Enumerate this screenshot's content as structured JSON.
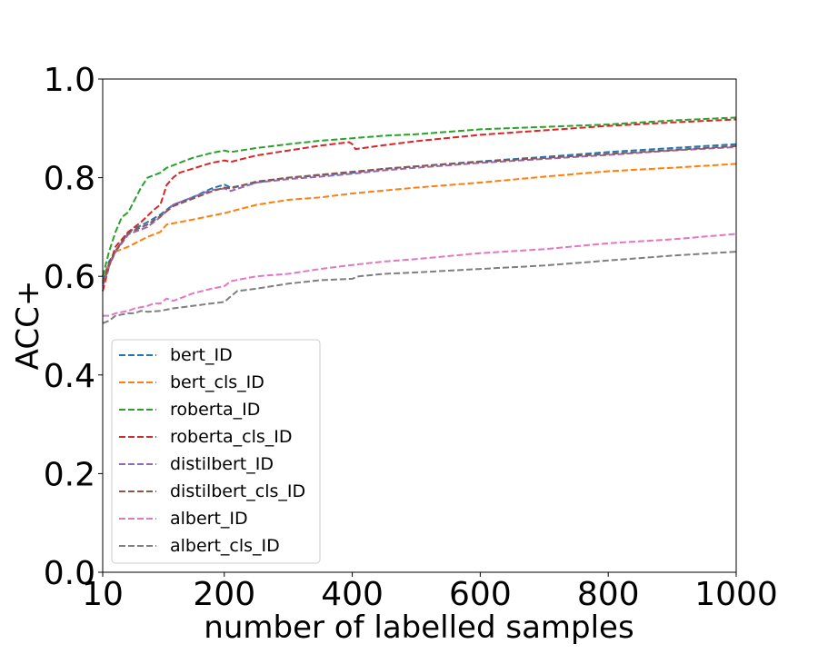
{
  "chart_data": {
    "type": "line",
    "title": "",
    "xlabel": "number of labelled samples",
    "ylabel": "ACC+",
    "xlim": [
      10,
      1000
    ],
    "ylim": [
      0.0,
      1.0
    ],
    "x_ticks": [
      10,
      200,
      400,
      600,
      800,
      1000
    ],
    "x_tick_labels": [
      "10",
      "200",
      "400",
      "600",
      "800",
      "1000"
    ],
    "y_ticks": [
      0.0,
      0.2,
      0.4,
      0.6,
      0.8,
      1.0
    ],
    "y_tick_labels": [
      "0.0",
      "0.2",
      "0.4",
      "0.6",
      "0.8",
      "1.0"
    ],
    "grid": false,
    "line_style": "dashed",
    "legend_position": "lower-left",
    "series": [
      {
        "name": "bert_ID",
        "color": "#1f77b4",
        "x": [
          10,
          20,
          30,
          50,
          80,
          100,
          120,
          150,
          180,
          200,
          210,
          250,
          300,
          350,
          400,
          450,
          500,
          600,
          700,
          800,
          900,
          1000
        ],
        "y": [
          0.59,
          0.63,
          0.65,
          0.69,
          0.71,
          0.725,
          0.745,
          0.76,
          0.778,
          0.786,
          0.78,
          0.79,
          0.8,
          0.805,
          0.81,
          0.818,
          0.823,
          0.833,
          0.842,
          0.852,
          0.86,
          0.868
        ]
      },
      {
        "name": "bert_cls_ID",
        "color": "#ff7f0e",
        "x": [
          10,
          20,
          30,
          50,
          80,
          100,
          110,
          150,
          200,
          250,
          300,
          350,
          400,
          500,
          600,
          700,
          800,
          900,
          1000
        ],
        "y": [
          0.6,
          0.625,
          0.65,
          0.66,
          0.68,
          0.69,
          0.705,
          0.715,
          0.728,
          0.745,
          0.755,
          0.76,
          0.768,
          0.78,
          0.79,
          0.802,
          0.813,
          0.82,
          0.828
        ]
      },
      {
        "name": "roberta_ID",
        "color": "#2ca02c",
        "x": [
          10,
          20,
          30,
          40,
          50,
          60,
          70,
          80,
          100,
          110,
          130,
          150,
          180,
          200,
          210,
          250,
          300,
          350,
          400,
          450,
          500,
          600,
          700,
          800,
          900,
          1000
        ],
        "y": [
          0.6,
          0.65,
          0.69,
          0.72,
          0.73,
          0.755,
          0.78,
          0.8,
          0.81,
          0.82,
          0.83,
          0.84,
          0.85,
          0.855,
          0.852,
          0.86,
          0.868,
          0.875,
          0.88,
          0.885,
          0.888,
          0.898,
          0.903,
          0.908,
          0.916,
          0.922
        ]
      },
      {
        "name": "roberta_cls_ID",
        "color": "#d62728",
        "x": [
          10,
          20,
          30,
          50,
          70,
          90,
          100,
          110,
          120,
          130,
          150,
          180,
          200,
          210,
          250,
          300,
          350,
          395,
          400,
          405,
          450,
          500,
          600,
          700,
          800,
          900,
          1000
        ],
        "y": [
          0.57,
          0.62,
          0.66,
          0.69,
          0.71,
          0.735,
          0.745,
          0.785,
          0.8,
          0.81,
          0.818,
          0.83,
          0.835,
          0.832,
          0.845,
          0.855,
          0.865,
          0.872,
          0.868,
          0.858,
          0.866,
          0.874,
          0.887,
          0.896,
          0.905,
          0.912,
          0.918
        ]
      },
      {
        "name": "distilbert_ID",
        "color": "#9467bd",
        "x": [
          10,
          20,
          30,
          50,
          80,
          100,
          120,
          150,
          180,
          200,
          210,
          250,
          300,
          350,
          400,
          450,
          500,
          600,
          700,
          800,
          900,
          1000
        ],
        "y": [
          0.58,
          0.62,
          0.65,
          0.685,
          0.7,
          0.72,
          0.745,
          0.76,
          0.775,
          0.778,
          0.773,
          0.79,
          0.797,
          0.802,
          0.808,
          0.815,
          0.82,
          0.83,
          0.838,
          0.846,
          0.855,
          0.862
        ]
      },
      {
        "name": "distilbert_cls_ID",
        "color": "#8c564b",
        "x": [
          10,
          20,
          30,
          50,
          80,
          100,
          120,
          150,
          180,
          200,
          210,
          250,
          300,
          350,
          400,
          450,
          500,
          600,
          700,
          800,
          900,
          1000
        ],
        "y": [
          0.585,
          0.625,
          0.652,
          0.688,
          0.705,
          0.722,
          0.742,
          0.757,
          0.772,
          0.78,
          0.778,
          0.792,
          0.8,
          0.806,
          0.812,
          0.818,
          0.823,
          0.832,
          0.84,
          0.848,
          0.856,
          0.864
        ]
      },
      {
        "name": "albert_ID",
        "color": "#e377c2",
        "x": [
          10,
          20,
          30,
          50,
          60,
          80,
          90,
          100,
          110,
          120,
          150,
          180,
          200,
          210,
          250,
          300,
          350,
          400,
          450,
          500,
          600,
          700,
          800,
          900,
          1000
        ],
        "y": [
          0.52,
          0.52,
          0.525,
          0.53,
          0.535,
          0.54,
          0.545,
          0.545,
          0.555,
          0.55,
          0.565,
          0.575,
          0.58,
          0.59,
          0.6,
          0.605,
          0.615,
          0.623,
          0.63,
          0.635,
          0.647,
          0.655,
          0.667,
          0.675,
          0.686
        ]
      },
      {
        "name": "albert_cls_ID",
        "color": "#7f7f7f",
        "x": [
          10,
          20,
          30,
          50,
          60,
          70,
          80,
          100,
          120,
          150,
          180,
          200,
          220,
          250,
          300,
          350,
          400,
          410,
          450,
          500,
          600,
          700,
          800,
          900,
          1000
        ],
        "y": [
          0.505,
          0.51,
          0.52,
          0.525,
          0.525,
          0.53,
          0.528,
          0.53,
          0.535,
          0.54,
          0.545,
          0.548,
          0.57,
          0.575,
          0.585,
          0.592,
          0.595,
          0.6,
          0.605,
          0.608,
          0.615,
          0.622,
          0.632,
          0.642,
          0.65
        ]
      }
    ]
  }
}
